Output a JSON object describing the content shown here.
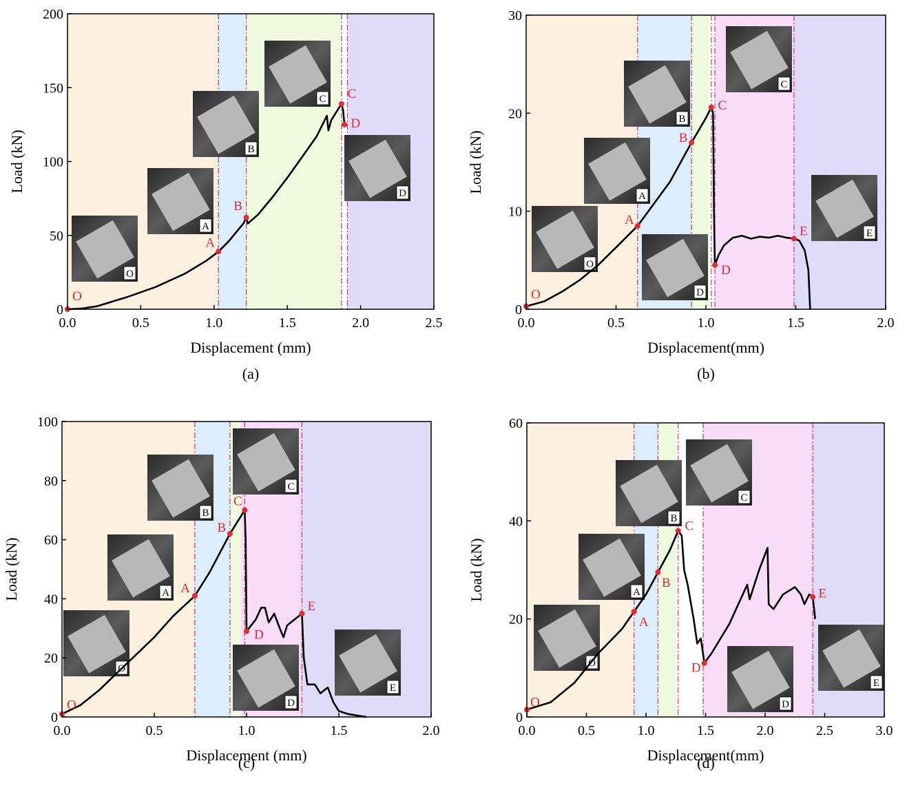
{
  "chart_data": [
    {
      "type": "line",
      "caption": "(a)",
      "xlabel": "Displacement (mm)",
      "ylabel": "Load (kN)",
      "xlim": [
        0,
        2.5
      ],
      "ylim": [
        0,
        200
      ],
      "xticks": [
        {
          "value": 0,
          "label": "0.0"
        },
        0.5,
        {
          "value": 1,
          "label": "1.0"
        },
        1.5,
        {
          "value": 2,
          "label": "2.0"
        },
        2.5
      ],
      "yticks": [
        0,
        50,
        100,
        150,
        200
      ],
      "regions": [
        {
          "range": [
            0,
            1.03
          ],
          "color": "#fbf1de"
        },
        {
          "range": [
            1.03,
            1.22
          ],
          "color": "#dcedfb"
        },
        {
          "range": [
            1.22,
            1.87
          ],
          "color": "#eef9dd"
        },
        {
          "range": [
            1.91,
            2.5
          ],
          "color": "#dedcf9"
        }
      ],
      "boundaries": [
        1.03,
        1.22,
        1.87,
        1.91
      ],
      "boundary_color": "#c8327a",
      "series": [
        {
          "color": "#000000",
          "x": [
            0,
            0.1,
            0.2,
            0.4,
            0.6,
            0.8,
            0.95,
            1.03,
            1.1,
            1.2,
            1.22,
            1.23,
            1.3,
            1.4,
            1.5,
            1.6,
            1.7,
            1.77,
            1.78,
            1.8,
            1.85,
            1.87,
            1.88,
            1.89
          ],
          "values": [
            0,
            0.5,
            2,
            8,
            15,
            24,
            33,
            39,
            46,
            58,
            62,
            58,
            64,
            76,
            89,
            103,
            117,
            131,
            121,
            128,
            136,
            139,
            135,
            125
          ]
        }
      ],
      "points": {
        "color": "#e8292e",
        "labels": [
          "O",
          "A",
          "B",
          "C",
          "D"
        ],
        "x": [
          0,
          1.03,
          1.22,
          1.87,
          1.89
        ],
        "values": [
          0,
          39,
          62,
          139,
          125
        ]
      },
      "insets": [
        "O",
        "A",
        "B",
        "C",
        "D"
      ]
    },
    {
      "type": "line",
      "caption": "(b)",
      "xlabel": "Displacement(mm)",
      "ylabel": "Load (kN)",
      "xlim": [
        0,
        2.0
      ],
      "ylim": [
        0,
        30
      ],
      "xticks": [
        {
          "value": 0,
          "label": "0.0"
        },
        0.5,
        {
          "value": 1,
          "label": "1.0"
        },
        1.5,
        {
          "value": 2,
          "label": "2.0"
        }
      ],
      "yticks": [
        0,
        10,
        20,
        30
      ],
      "regions": [
        {
          "range": [
            0,
            0.62
          ],
          "color": "#fbf1de"
        },
        {
          "range": [
            0.62,
            0.92
          ],
          "color": "#dcedfb"
        },
        {
          "range": [
            0.92,
            1.02
          ],
          "color": "#eef9dd"
        },
        {
          "range": [
            1.05,
            1.49
          ],
          "color": "#f8dcf8"
        },
        {
          "range": [
            1.49,
            2.0
          ],
          "color": "#dedcf9"
        }
      ],
      "boundaries": [
        0.62,
        0.92,
        1.03,
        1.05,
        1.49
      ],
      "boundary_color": "#c8327a",
      "series": [
        {
          "color": "#000000",
          "x": [
            0,
            0.1,
            0.2,
            0.3,
            0.4,
            0.5,
            0.62,
            0.7,
            0.8,
            0.92,
            1.0,
            1.03,
            1.04,
            1.045,
            1.05,
            1.07,
            1.1,
            1.15,
            1.2,
            1.25,
            1.3,
            1.35,
            1.4,
            1.45,
            1.49,
            1.52,
            1.55,
            1.57,
            1.58
          ],
          "values": [
            0.3,
            0.8,
            1.8,
            3,
            4.5,
            6.3,
            8.5,
            10.5,
            13,
            17,
            19.5,
            20.6,
            20,
            10,
            4.5,
            5.5,
            6.5,
            7.3,
            7.5,
            7.2,
            7.4,
            7.3,
            7.5,
            7.3,
            7.2,
            7.0,
            6.0,
            4,
            0
          ]
        }
      ],
      "points": {
        "color": "#e8292e",
        "labels": [
          "O",
          "A",
          "B",
          "C",
          "D",
          "E"
        ],
        "x": [
          0,
          0.62,
          0.92,
          1.03,
          1.05,
          1.49
        ],
        "values": [
          0.3,
          8.5,
          17,
          20.6,
          4.5,
          7.2
        ]
      },
      "insets": [
        "C",
        "B",
        "A",
        "E",
        "O",
        "D"
      ]
    },
    {
      "type": "line",
      "caption": "(c)",
      "xlabel": "Displacement (mm)",
      "ylabel": "Load (kN)",
      "xlim": [
        0,
        2.0
      ],
      "ylim": [
        0,
        100
      ],
      "xticks": [
        {
          "value": 0,
          "label": "0.0"
        },
        0.5,
        {
          "value": 1,
          "label": "1.0"
        },
        1.5,
        {
          "value": 2,
          "label": "2.0"
        }
      ],
      "yticks": [
        0,
        20,
        40,
        60,
        80,
        100
      ],
      "regions": [
        {
          "range": [
            0,
            0.72
          ],
          "color": "#fbf1de"
        },
        {
          "range": [
            0.72,
            0.91
          ],
          "color": "#dcedfb"
        },
        {
          "range": [
            0.91,
            0.97
          ],
          "color": "#eef9dd"
        },
        {
          "range": [
            0.97,
            1.3
          ],
          "color": "#f8dcf8"
        },
        {
          "range": [
            1.3,
            2.0
          ],
          "color": "#dedcf9"
        }
      ],
      "boundaries": [
        0.72,
        0.91,
        0.99,
        1.3
      ],
      "boundary_color": "#c8327a",
      "series": [
        {
          "color": "#000000",
          "x": [
            0,
            0.1,
            0.2,
            0.3,
            0.4,
            0.5,
            0.6,
            0.72,
            0.8,
            0.91,
            0.99,
            0.995,
            1.0,
            1.05,
            1.08,
            1.1,
            1.12,
            1.15,
            1.18,
            1.2,
            1.22,
            1.26,
            1.3,
            1.31,
            1.33,
            1.37,
            1.4,
            1.44,
            1.47,
            1.5,
            1.55,
            1.6,
            1.65
          ],
          "values": [
            1,
            4,
            9,
            15,
            21,
            27,
            34,
            41,
            49,
            62,
            70,
            60,
            29,
            33,
            37,
            37,
            32,
            35,
            30,
            27,
            31,
            33,
            35,
            20,
            11,
            11,
            8,
            10,
            5,
            2,
            1,
            0.5,
            0
          ]
        }
      ],
      "points": {
        "color": "#e8292e",
        "labels": [
          "O",
          "A",
          "B",
          "C",
          "D",
          "E"
        ],
        "x": [
          0,
          0.72,
          0.91,
          0.99,
          1.0,
          1.3
        ],
        "values": [
          1,
          41,
          62,
          70,
          29,
          35
        ]
      },
      "insets": [
        "C",
        "B",
        "A",
        "O",
        "D",
        "E"
      ]
    },
    {
      "type": "line",
      "caption": "(d)",
      "xlabel": "Displacement(mm)",
      "ylabel": "Load (kN)",
      "xlim": [
        0,
        3.0
      ],
      "ylim": [
        0,
        60
      ],
      "xticks": [
        {
          "value": 0,
          "label": "0.0"
        },
        0.5,
        {
          "value": 1,
          "label": "1.0"
        },
        1.5,
        {
          "value": 2,
          "label": "2.0"
        },
        2.5,
        {
          "value": 3,
          "label": "3.0"
        }
      ],
      "yticks": [
        0,
        20,
        40,
        60
      ],
      "regions": [
        {
          "range": [
            0,
            0.9
          ],
          "color": "#fbf1de"
        },
        {
          "range": [
            0.9,
            1.1
          ],
          "color": "#dcedfb"
        },
        {
          "range": [
            1.1,
            1.26
          ],
          "color": "#eef9dd"
        },
        {
          "range": [
            1.48,
            2.4
          ],
          "color": "#f8dcf8"
        },
        {
          "range": [
            2.4,
            3.0
          ],
          "color": "#dedcf9"
        }
      ],
      "boundaries": [
        0.9,
        1.1,
        1.27,
        1.48,
        2.4
      ],
      "boundary_color": "#c8327a",
      "series": [
        {
          "color": "#000000",
          "x": [
            0,
            0.2,
            0.4,
            0.6,
            0.8,
            0.9,
            1.0,
            1.1,
            1.2,
            1.27,
            1.3,
            1.32,
            1.35,
            1.4,
            1.43,
            1.46,
            1.49,
            1.55,
            1.7,
            1.85,
            1.87,
            1.95,
            2.02,
            2.03,
            2.07,
            2.15,
            2.25,
            2.3,
            2.33,
            2.37,
            2.4,
            2.42
          ],
          "values": [
            1.5,
            3,
            7,
            13,
            18,
            21.5,
            25,
            29.5,
            34,
            38,
            37,
            30,
            27,
            20,
            15,
            16,
            11,
            13,
            19,
            27,
            24,
            30,
            34.5,
            23,
            22,
            25,
            26.5,
            25,
            23,
            25,
            24.5,
            20
          ]
        }
      ],
      "points": {
        "color": "#e8292e",
        "labels": [
          "O",
          "A",
          "B",
          "C",
          "D",
          "E"
        ],
        "x": [
          0,
          0.9,
          1.1,
          1.27,
          1.49,
          2.4
        ],
        "values": [
          1.5,
          21.5,
          29.5,
          38,
          11,
          24.5
        ]
      },
      "insets": [
        "C",
        "B",
        "A",
        "O",
        "D",
        "E"
      ]
    }
  ]
}
